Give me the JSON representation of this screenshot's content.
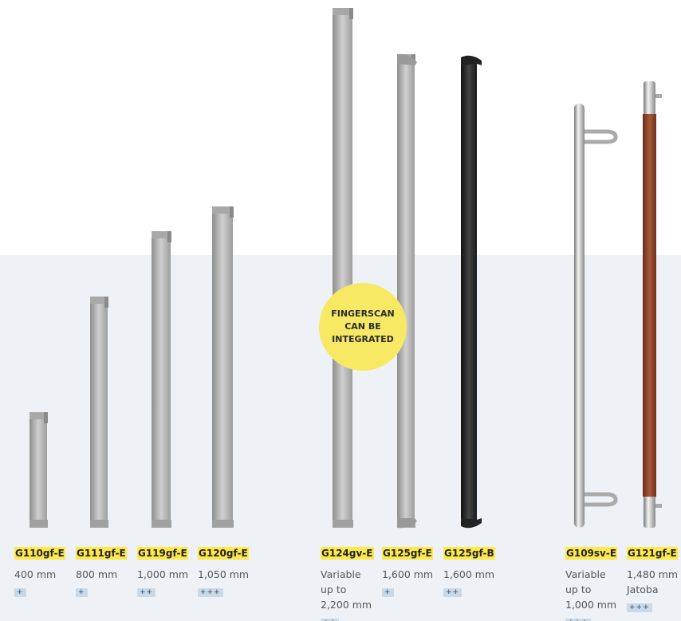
{
  "products": [
    {
      "name": "G110gf-E",
      "description": [
        "400 mm"
      ],
      "rating": "+"
    },
    {
      "name": "G111gf-E",
      "description": [
        "800 mm"
      ],
      "rating": "+"
    },
    {
      "name": "G119gf-E",
      "description": [
        "1,000 mm"
      ],
      "rating": "++"
    },
    {
      "name": "G120gf-E",
      "description": [
        "1,050 mm"
      ],
      "rating": "+++"
    },
    {
      "name": "G124gv-E",
      "description": [
        "Variable",
        "up to",
        "2,200 mm"
      ],
      "rating": "++"
    },
    {
      "name": "G125gf-E",
      "description": [
        "1,600 mm"
      ],
      "rating": "+"
    },
    {
      "name": "G125gf-B",
      "description": [
        "1,600 mm"
      ],
      "rating": "++"
    },
    {
      "name": "G109sv-E",
      "description": [
        "Variable",
        "up to",
        "1,000 mm"
      ],
      "rating": "+++"
    },
    {
      "name": "G121gf-E",
      "description": [
        "1,480 mm",
        "Jatoba"
      ],
      "rating": "+++"
    }
  ],
  "badge": {
    "lines": [
      "FINGERSCAN",
      "CAN BE",
      "INTEGRATED"
    ]
  }
}
